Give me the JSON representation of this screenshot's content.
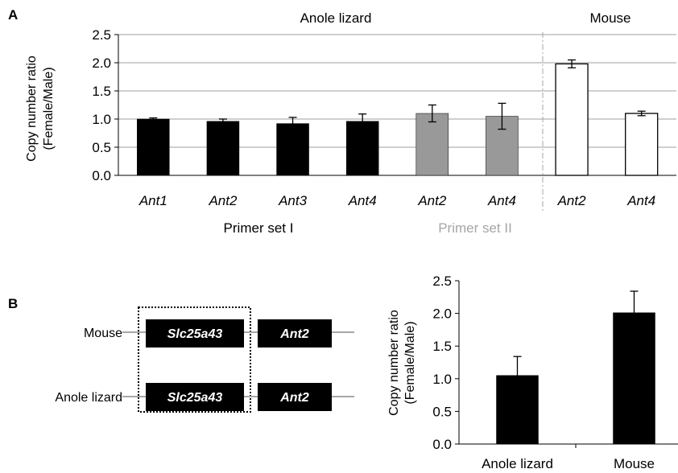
{
  "panels": {
    "a_label": "A",
    "b_label": "B"
  },
  "colors": {
    "black_bar": "#000000",
    "gray_bar": "#999999",
    "white_bar": "#ffffff",
    "gridline": "#bfbfbf",
    "secondary_text": "#a6a6a6",
    "divider": "#a6a6a6"
  },
  "chart_data": [
    {
      "type": "bar",
      "panel": "A",
      "ylabel_line1": "Copy number ratio",
      "ylabel_line2": "(Female/Male)",
      "ylim": [
        0,
        2.5
      ],
      "yticks": [
        "0.0",
        "0.5",
        "1.0",
        "1.5",
        "2.0",
        "2.5"
      ],
      "grid": true,
      "group_labels": {
        "left": "Anole lizard",
        "right": "Mouse"
      },
      "primer_labels": {
        "set1": "Primer set I",
        "set2": "Primer set II"
      },
      "categories": [
        "Ant1",
        "Ant2",
        "Ant3",
        "Ant4",
        "Ant2",
        "Ant4",
        "Ant2",
        "Ant4"
      ],
      "values": [
        1.0,
        0.96,
        0.92,
        0.96,
        1.1,
        1.05,
        1.98,
        1.1
      ],
      "errors": [
        0.02,
        0.04,
        0.11,
        0.13,
        0.15,
        0.23,
        0.07,
        0.04
      ],
      "bar_styles": [
        "black",
        "black",
        "black",
        "black",
        "gray",
        "gray",
        "white",
        "white"
      ]
    },
    {
      "type": "bar",
      "panel": "B",
      "ylabel_line1": "Copy number ratio",
      "ylabel_line2": "(Female/Male)",
      "ylim": [
        0,
        2.5
      ],
      "yticks": [
        "0.0",
        "0.5",
        "1.0",
        "1.5",
        "2.0",
        "2.5"
      ],
      "grid": false,
      "categories": [
        "Anole lizard",
        "Mouse"
      ],
      "values": [
        1.05,
        2.01
      ],
      "errors": [
        0.29,
        0.33
      ],
      "bar_styles": [
        "black",
        "black"
      ]
    }
  ],
  "diagram": {
    "rows": [
      {
        "species": "Mouse",
        "gene1": "Slc25a43",
        "gene2": "Ant2"
      },
      {
        "species": "Anole lizard",
        "gene1": "Slc25a43",
        "gene2": "Ant2"
      }
    ]
  }
}
